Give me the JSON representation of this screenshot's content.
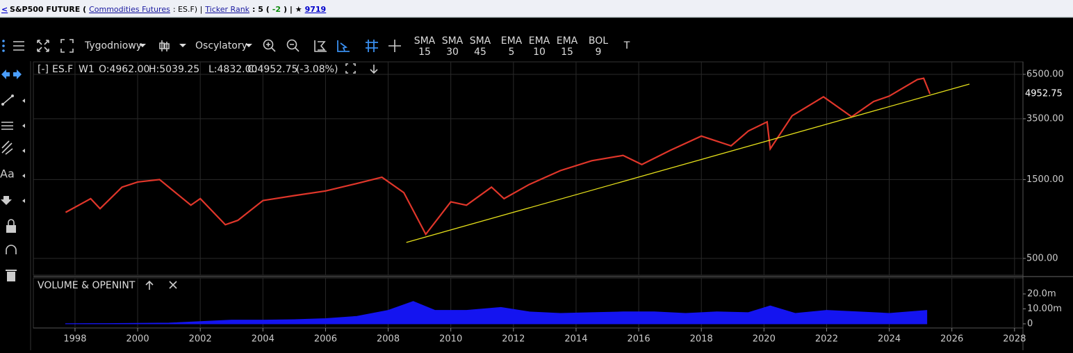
{
  "header": {
    "back": "<",
    "title": "S&P500 FUTURE (",
    "category": "Commodities Futures",
    "symbol_part": ": ES.F) |",
    "rank_label": "Ticker Rank",
    "rank_part": ": 5 (",
    "rank_change": "-2",
    "views_part": ") | ★",
    "views": "9719"
  },
  "toolbar": {
    "interval": "Tygodniowy",
    "oscillators": "Oscylatory",
    "indicators": [
      {
        "name": "SMA",
        "period": 15
      },
      {
        "name": "SMA",
        "period": 30
      },
      {
        "name": "SMA",
        "period": 45
      },
      {
        "name": "EMA",
        "period": 5
      },
      {
        "name": "EMA",
        "period": 10
      },
      {
        "name": "EMA",
        "period": 15
      },
      {
        "name": "BOL",
        "period": 9
      }
    ],
    "text_tool": "T"
  },
  "sidebar": {
    "text_tool": "Aa"
  },
  "chart_data": [
    {
      "type": "line",
      "log_scale": true,
      "grid": true,
      "color": "#e0362a",
      "legend": {
        "toggle": "[-]",
        "symbol": "ES.F",
        "interval": "W1",
        "open": "O:4962.00",
        "high": "H:5039.25",
        "low": "L:4832.00",
        "close": "C:4952.75",
        "change": "(-3.08%)"
      },
      "x": [
        1997.7,
        1998.5,
        1998.8,
        1999.5,
        2000.0,
        2000.7,
        2001.7,
        2002.0,
        2002.8,
        2003.2,
        2004.0,
        2005.0,
        2006.0,
        2007.0,
        2007.8,
        2008.5,
        2009.2,
        2010.0,
        2010.5,
        2011.3,
        2011.7,
        2012.5,
        2013.5,
        2014.5,
        2015.5,
        2016.1,
        2017.0,
        2018.0,
        2018.95,
        2019.5,
        2020.1,
        2020.2,
        2020.9,
        2021.9,
        2022.8,
        2023.5,
        2024.0,
        2024.9,
        2025.1,
        2025.3
      ],
      "values": [
        950,
        1150,
        1000,
        1350,
        1450,
        1500,
        1050,
        1150,
        800,
        850,
        1120,
        1200,
        1280,
        1420,
        1550,
        1250,
        700,
        1100,
        1050,
        1350,
        1150,
        1400,
        1700,
        1950,
        2100,
        1850,
        2250,
        2750,
        2400,
        2950,
        3350,
        2300,
        3650,
        4750,
        3600,
        4450,
        4800,
        6050,
        6150,
        4952.75
      ],
      "last_price": 4952.75,
      "trendline": {
        "x": [
          2008.58,
          2026.56
        ],
        "y": [
          625,
          5675
        ],
        "color": "#e6e01a"
      },
      "xlim": [
        1996.67,
        2028.27
      ],
      "ylim": [
        396,
        7660
      ],
      "yticks": [
        {
          "value": 6500,
          "label": "6500.00"
        },
        {
          "value": 3500,
          "label": "3500.00"
        },
        {
          "value": 1500,
          "label": "1500.00"
        },
        {
          "value": 500,
          "label": "500.00"
        }
      ],
      "xticks": [
        1998,
        2000,
        2002,
        2004,
        2006,
        2008,
        2010,
        2012,
        2014,
        2016,
        2018,
        2020,
        2022,
        2024,
        2026,
        2028
      ]
    },
    {
      "type": "area",
      "title": "VOLUME & OPENINT",
      "color": "#1414f0",
      "x": [
        1997.7,
        1999,
        2001,
        2002,
        2003,
        2004,
        2005,
        2006,
        2007,
        2008,
        2008.8,
        2009.5,
        2010.5,
        2011.6,
        2012.5,
        2013.5,
        2014.5,
        2015.5,
        2016.5,
        2017.5,
        2018.5,
        2019.5,
        2020.2,
        2021,
        2022,
        2023,
        2024,
        2025.2
      ],
      "values": [
        0.1,
        0.2,
        0.5,
        1.5,
        2.5,
        2.5,
        2.8,
        3.5,
        5,
        9,
        15,
        9,
        9,
        11,
        8,
        7,
        7.5,
        8,
        8,
        7,
        8,
        7.5,
        12,
        7,
        9,
        8,
        7,
        9
      ],
      "xlim": [
        1996.67,
        2028.27
      ],
      "ylim": [
        0,
        30.7
      ],
      "yticks": [
        {
          "value": 20,
          "label": "20.0m"
        },
        {
          "value": 10,
          "label": "10.00m"
        },
        0
      ]
    }
  ]
}
